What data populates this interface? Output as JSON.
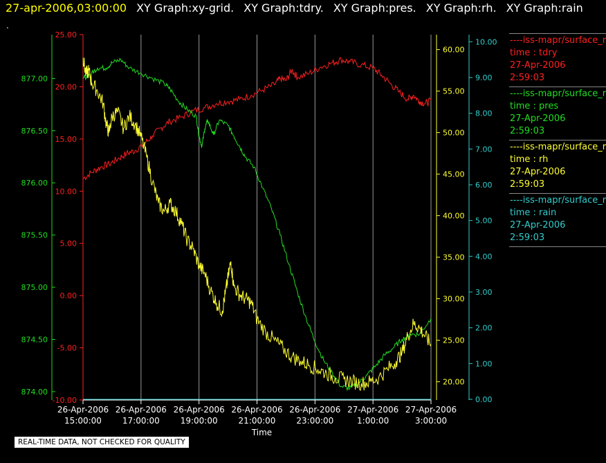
{
  "header": {
    "timestamp": "27-apr-2006,03:00:00",
    "graph_titles": [
      "XY Graph:xy-grid.",
      "XY Graph:tdry.",
      "XY Graph:pres.",
      "XY Graph:rh.",
      "XY Graph:rain"
    ]
  },
  "marker_text": ".",
  "quality_note": "REAL-TIME DATA, NOT CHECKED FOR QUALITY",
  "legend": [
    {
      "line": "----iss-mapr/surface_r",
      "label": "time : tdry",
      "date": "27-Apr-2006",
      "time": "2:59:03",
      "color": "#ff2020"
    },
    {
      "line": "----iss-mapr/surface_r",
      "label": "time : pres",
      "date": "27-Apr-2006",
      "time": "2:59:03",
      "color": "#22dd22"
    },
    {
      "line": "----iss-mapr/surface_r",
      "label": "time : rh",
      "date": "27-Apr-2006",
      "time": "2:59:03",
      "color": "#ffff33"
    },
    {
      "line": "----iss-mapr/surface_r",
      "label": "time : rain",
      "date": "27-Apr-2006",
      "time": "2:59:03",
      "color": "#33cccc"
    }
  ],
  "chart_data": {
    "type": "line",
    "xlabel": "Time",
    "x_ticks": [
      {
        "d": "26-Apr-2006",
        "t": "15:00:00"
      },
      {
        "d": "26-Apr-2006",
        "t": "17:00:00"
      },
      {
        "d": "26-Apr-2006",
        "t": "19:00:00"
      },
      {
        "d": "26-Apr-2006",
        "t": "21:00:00"
      },
      {
        "d": "26-Apr-2006",
        "t": "23:00:00"
      },
      {
        "d": "27-Apr-2006",
        "t": "1:00:00"
      },
      {
        "d": "27-Apr-2006",
        "t": "3:00:00"
      }
    ],
    "xlim": [
      "2006-04-26 15:00",
      "2006-04-27 03:00"
    ],
    "axes": {
      "tdry": {
        "color": "#ff2020",
        "ylim": [
          -10,
          25
        ],
        "ticks": [
          "25.00",
          "20.00",
          "15.00",
          "10.00",
          "5.00",
          "0.00",
          "-5.00",
          "-10.00"
        ]
      },
      "pres": {
        "color": "#22dd22",
        "ylim": [
          873.92,
          877.42
        ],
        "ticks": [
          "877.00",
          "876.50",
          "876.00",
          "875.50",
          "875.00",
          "874.50",
          "874.00"
        ]
      },
      "rh": {
        "color": "#ffff33",
        "ylim": [
          17.8,
          61.8
        ],
        "ticks": [
          "60.00",
          "55.00",
          "50.00",
          "45.00",
          "40.00",
          "35.00",
          "30.00",
          "25.00",
          "20.00"
        ]
      },
      "rain": {
        "color": "#33cccc",
        "ylim": [
          -0.02,
          10.2
        ],
        "ticks": [
          "10.00",
          "9.00",
          "8.00",
          "7.00",
          "6.00",
          "5.00",
          "4.00",
          "3.00",
          "2.00",
          "1.00",
          "0.00"
        ]
      }
    },
    "series": [
      {
        "name": "tdry",
        "axis": "tdry",
        "color": "#ff2020",
        "points": [
          [
            0,
            11.2
          ],
          [
            0.3,
            11.8
          ],
          [
            0.6,
            12.3
          ],
          [
            0.9,
            12.6
          ],
          [
            1.2,
            13.1
          ],
          [
            1.5,
            13.6
          ],
          [
            1.8,
            13.9
          ],
          [
            2.1,
            14.5
          ],
          [
            2.4,
            15.3
          ],
          [
            2.7,
            16.1
          ],
          [
            3.0,
            16.7
          ],
          [
            3.4,
            17.1
          ],
          [
            3.8,
            17.7
          ],
          [
            4.2,
            18.0
          ],
          [
            4.6,
            18.4
          ],
          [
            5.0,
            18.6
          ],
          [
            5.4,
            18.8
          ],
          [
            5.8,
            19.2
          ],
          [
            6.2,
            19.7
          ],
          [
            6.6,
            20.2
          ],
          [
            6.8,
            20.8
          ],
          [
            7.0,
            20.6
          ],
          [
            7.2,
            21.6
          ],
          [
            7.4,
            20.9
          ],
          [
            7.8,
            21.3
          ],
          [
            8.2,
            21.9
          ],
          [
            8.6,
            22.3
          ],
          [
            8.9,
            22.6
          ],
          [
            9.2,
            22.4
          ],
          [
            9.6,
            22.1
          ],
          [
            10.0,
            21.8
          ],
          [
            10.3,
            21.1
          ],
          [
            10.6,
            20.3
          ],
          [
            10.9,
            19.5
          ],
          [
            11.2,
            18.8
          ],
          [
            11.4,
            19.2
          ],
          [
            11.6,
            18.6
          ],
          [
            11.8,
            18.4
          ],
          [
            12.0,
            18.7
          ]
        ]
      },
      {
        "name": "pres",
        "axis": "pres",
        "color": "#22dd22",
        "points": [
          [
            0,
            877.0
          ],
          [
            0.3,
            877.05
          ],
          [
            0.5,
            877.1
          ],
          [
            0.8,
            877.1
          ],
          [
            1.0,
            877.15
          ],
          [
            1.3,
            877.18
          ],
          [
            1.6,
            877.1
          ],
          [
            2.0,
            877.05
          ],
          [
            2.4,
            877.0
          ],
          [
            2.8,
            876.95
          ],
          [
            3.0,
            876.9
          ],
          [
            3.3,
            876.78
          ],
          [
            3.6,
            876.7
          ],
          [
            3.9,
            876.64
          ],
          [
            4.0,
            876.45
          ],
          [
            4.1,
            876.35
          ],
          [
            4.2,
            876.52
          ],
          [
            4.3,
            876.6
          ],
          [
            4.5,
            876.46
          ],
          [
            4.7,
            876.6
          ],
          [
            5.0,
            876.55
          ],
          [
            5.2,
            876.45
          ],
          [
            5.4,
            876.35
          ],
          [
            5.6,
            876.25
          ],
          [
            5.9,
            876.15
          ],
          [
            6.2,
            875.95
          ],
          [
            6.5,
            875.75
          ],
          [
            6.8,
            875.5
          ],
          [
            7.1,
            875.22
          ],
          [
            7.4,
            874.95
          ],
          [
            7.7,
            874.7
          ],
          [
            8.0,
            874.48
          ],
          [
            8.3,
            874.3
          ],
          [
            8.6,
            874.18
          ],
          [
            8.9,
            874.05
          ],
          [
            9.2,
            874.03
          ],
          [
            9.5,
            874.08
          ],
          [
            9.8,
            874.16
          ],
          [
            10.1,
            874.25
          ],
          [
            10.4,
            874.35
          ],
          [
            10.7,
            874.42
          ],
          [
            11.0,
            874.5
          ],
          [
            11.3,
            874.55
          ],
          [
            11.6,
            874.55
          ],
          [
            12.0,
            874.7
          ]
        ]
      },
      {
        "name": "rh",
        "axis": "rh",
        "color": "#ffff33",
        "points": [
          [
            0,
            59.0
          ],
          [
            0.1,
            57.0
          ],
          [
            0.2,
            57.5
          ],
          [
            0.3,
            56.0
          ],
          [
            0.5,
            55.0
          ],
          [
            0.7,
            53.5
          ],
          [
            0.8,
            51.0
          ],
          [
            0.9,
            50.0
          ],
          [
            1.0,
            52.0
          ],
          [
            1.2,
            52.5
          ],
          [
            1.4,
            50.5
          ],
          [
            1.6,
            52.0
          ],
          [
            1.8,
            51.0
          ],
          [
            2.0,
            49.5
          ],
          [
            2.2,
            47.0
          ],
          [
            2.4,
            44.0
          ],
          [
            2.6,
            41.5
          ],
          [
            2.8,
            40.5
          ],
          [
            3.0,
            41.5
          ],
          [
            3.2,
            40.5
          ],
          [
            3.4,
            39.0
          ],
          [
            3.6,
            37.0
          ],
          [
            3.8,
            36.0
          ],
          [
            4.0,
            34.0
          ],
          [
            4.2,
            33.0
          ],
          [
            4.4,
            31.0
          ],
          [
            4.6,
            29.5
          ],
          [
            4.8,
            28.5
          ],
          [
            4.9,
            30.5
          ],
          [
            5.0,
            32.5
          ],
          [
            5.1,
            34.5
          ],
          [
            5.2,
            31.5
          ],
          [
            5.4,
            30.5
          ],
          [
            5.6,
            30.0
          ],
          [
            5.8,
            29.5
          ],
          [
            6.0,
            27.5
          ],
          [
            6.3,
            26.0
          ],
          [
            6.6,
            25.0
          ],
          [
            6.9,
            24.0
          ],
          [
            7.2,
            23.0
          ],
          [
            7.5,
            22.5
          ],
          [
            7.8,
            22.0
          ],
          [
            8.1,
            21.5
          ],
          [
            8.4,
            21.0
          ],
          [
            8.7,
            20.5
          ],
          [
            9.0,
            20.3
          ],
          [
            9.3,
            20.0
          ],
          [
            9.6,
            19.8
          ],
          [
            9.9,
            20.0
          ],
          [
            10.2,
            20.5
          ],
          [
            10.5,
            21.5
          ],
          [
            10.8,
            22.5
          ],
          [
            11.0,
            23.5
          ],
          [
            11.2,
            25.5
          ],
          [
            11.4,
            27.0
          ],
          [
            11.6,
            26.5
          ],
          [
            11.8,
            25.5
          ],
          [
            12.0,
            24.5
          ]
        ]
      },
      {
        "name": "rain",
        "axis": "rain",
        "color": "#33cccc",
        "points": [
          [
            0,
            0.0
          ],
          [
            12.0,
            0.0
          ]
        ]
      }
    ]
  }
}
